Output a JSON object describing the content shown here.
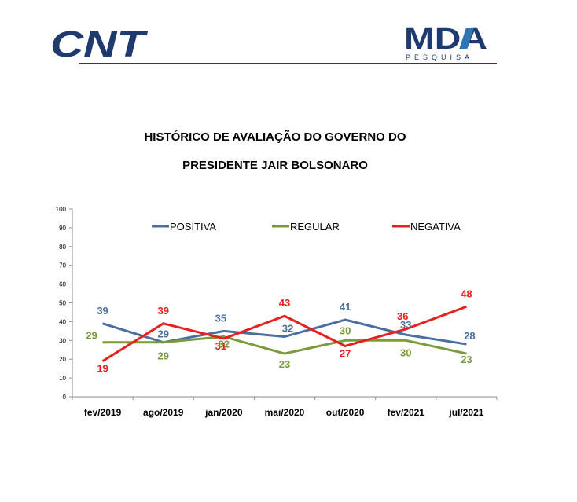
{
  "header": {
    "left_logo": "CNT",
    "right_logo": "MDA",
    "right_logo_sub": "PESQUISA",
    "brand_color": "#1f3a6e",
    "mda_accent_color": "#2e75b6"
  },
  "chart_data": {
    "type": "line",
    "title_lines": [
      "HISTÓRICO DE AVALIAÇÃO DO GOVERNO DO",
      "PRESIDENTE JAIR BOLSONARO"
    ],
    "categories": [
      "fev/2019",
      "ago/2019",
      "jan/2020",
      "mai/2020",
      "out/2020",
      "fev/2021",
      "jul/2021"
    ],
    "series": [
      {
        "name": "POSITIVA",
        "color": "#4a6fa0",
        "values": [
          39,
          29,
          35,
          32,
          41,
          33,
          28
        ]
      },
      {
        "name": "REGULAR",
        "color": "#7a9a3c",
        "values": [
          29,
          29,
          32,
          23,
          30,
          30,
          23
        ]
      },
      {
        "name": "NEGATIVA",
        "color": "#e5211f",
        "values": [
          19,
          39,
          31,
          43,
          27,
          36,
          48
        ]
      }
    ],
    "ylim": [
      0,
      100
    ],
    "yticks": [
      0,
      10,
      20,
      30,
      40,
      50,
      60,
      70,
      80,
      90,
      100
    ],
    "grid": false,
    "legend_position": "top"
  }
}
